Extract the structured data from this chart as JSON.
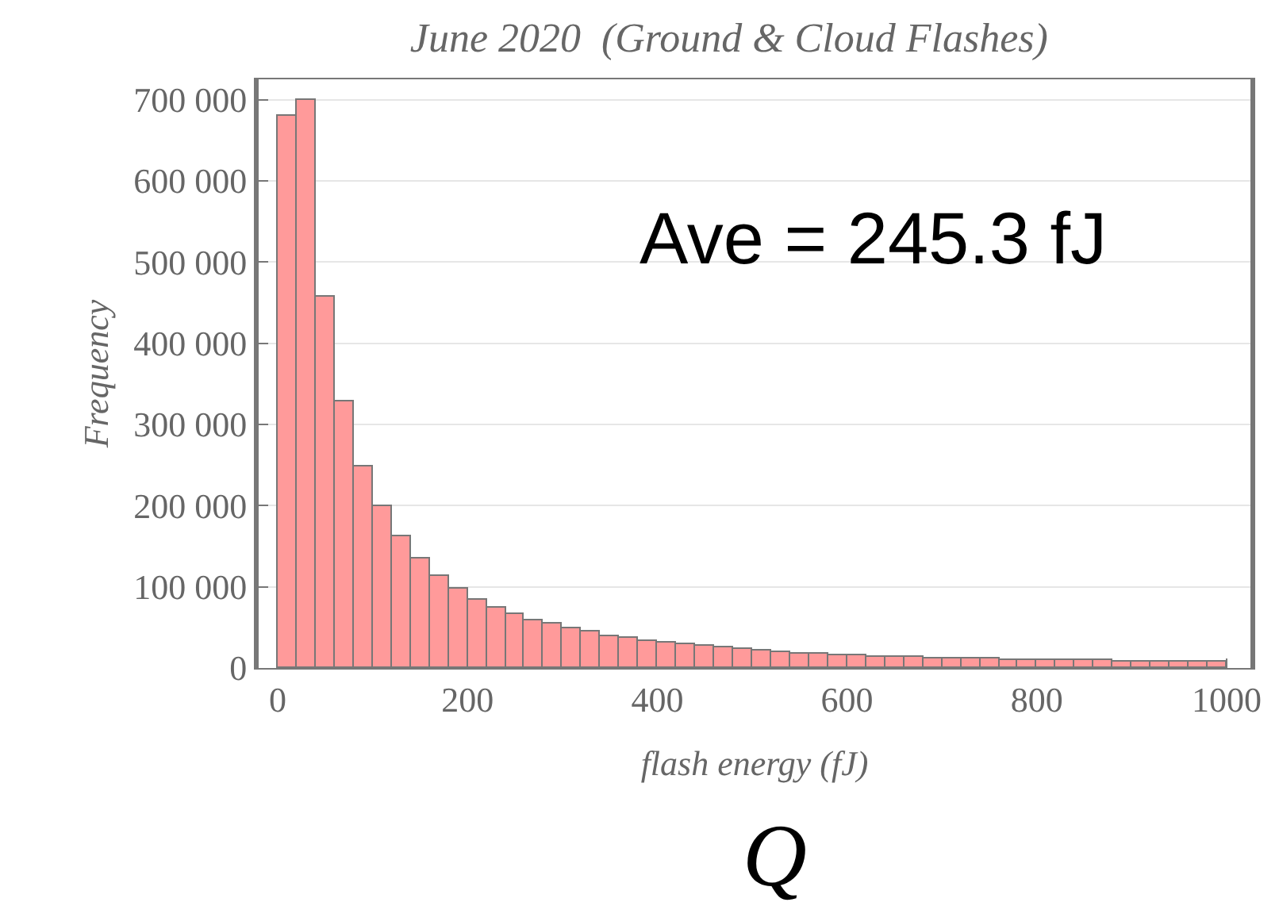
{
  "chart_data": {
    "type": "histogram",
    "title": "June 2020  (Ground & Cloud Flashes)",
    "xlabel": "flash energy (fJ)",
    "ylabel": "Frequency",
    "annotations": [
      "Ave = 245.3 fJ",
      "Q"
    ],
    "bins": [
      0,
      20,
      40,
      60,
      80,
      100,
      120,
      140,
      160,
      180,
      200,
      220,
      240,
      260,
      280,
      300,
      320,
      340,
      360,
      380,
      400,
      420,
      440,
      460,
      480,
      500,
      520,
      540,
      560,
      580,
      600,
      620,
      640,
      660,
      680,
      700,
      720,
      740,
      760,
      780,
      800,
      820,
      840,
      860,
      880,
      900,
      920,
      940,
      960,
      980,
      1000
    ],
    "values": [
      681000,
      700000,
      458000,
      328000,
      249000,
      200000,
      162000,
      135000,
      114000,
      98000,
      85000,
      75000,
      66000,
      59000,
      54000,
      49000,
      44000,
      40000,
      37000,
      34000,
      31000,
      29000,
      27000,
      25000,
      23000,
      21000,
      20000,
      18000,
      17000,
      16000,
      16000,
      14000,
      13000,
      13000,
      12000,
      12000,
      11000,
      11000,
      10000,
      10000,
      10000,
      9000,
      9000,
      9000,
      8000,
      8000,
      8000,
      7000,
      7000,
      7000
    ],
    "color": "#ff9a9a",
    "xlim": [
      -20,
      1025
    ],
    "ylim": [
      0,
      725000
    ],
    "xticks": [
      0,
      200,
      400,
      600,
      800,
      1000
    ],
    "yticks": [
      0,
      {
        "value": 100000,
        "label": "100 000"
      },
      {
        "value": 200000,
        "label": "200 000"
      },
      {
        "value": 300000,
        "label": "300 000"
      },
      {
        "value": 400000,
        "label": "400 000"
      },
      {
        "value": 500000,
        "label": "500 000"
      },
      {
        "value": 600000,
        "label": "600 000"
      },
      {
        "value": 700000,
        "label": "700 000"
      }
    ],
    "grid": "y"
  }
}
